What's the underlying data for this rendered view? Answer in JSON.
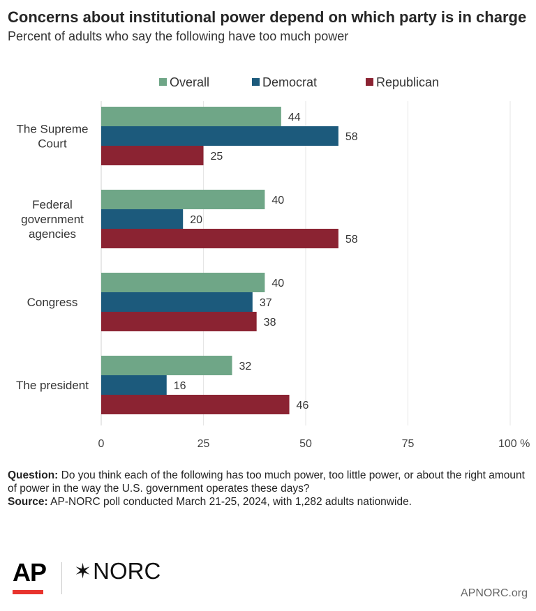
{
  "header": {
    "title": "Concerns about institutional power depend on which party is in charge",
    "subtitle": "Percent of adults who say the following have too much power"
  },
  "chart_data": {
    "type": "bar",
    "orientation": "horizontal",
    "categories": [
      [
        "The Supreme",
        "Court"
      ],
      [
        "Federal",
        "government",
        "agencies"
      ],
      [
        "Congress"
      ],
      [
        "The president"
      ]
    ],
    "series": [
      {
        "name": "Overall",
        "color": "#6fa687",
        "values": [
          44,
          40,
          40,
          32
        ]
      },
      {
        "name": "Democrat",
        "color": "#1c5a7c",
        "values": [
          58,
          20,
          37,
          16
        ]
      },
      {
        "name": "Republican",
        "color": "#8b2332",
        "values": [
          25,
          58,
          38,
          46
        ]
      }
    ],
    "xlim": [
      0,
      100
    ],
    "xticks": [
      "0",
      "25",
      "50",
      "75",
      "100 %"
    ],
    "xtick_values": [
      0,
      25,
      50,
      75,
      100
    ],
    "grid": true,
    "legend": "top-center"
  },
  "footnote": {
    "question_label": "Question:",
    "question_text": "Do you think each of the following has too much power, too little power, or about the right amount of power in the way the U.S. government operates these days?",
    "source_label": "Source:",
    "source_text": "AP-NORC poll conducted March 21-25, 2024, with 1,282 adults nationwide."
  },
  "branding": {
    "ap_logo": "AP",
    "norc_logo": "NORC",
    "site": "APNORC.org"
  }
}
